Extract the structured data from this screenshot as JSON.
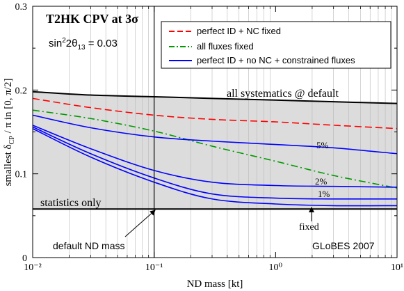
{
  "chart_data": {
    "type": "line",
    "title": "T2HK  CPV at 3σ",
    "subtitle": "sin²2θ₁₃ = 0.03",
    "xlabel": "ND mass [kt]",
    "ylabel": "smallest δCP / π  in [0, π/2]",
    "xscale": "log",
    "xlim": [
      0.01,
      10
    ],
    "ylim": [
      0,
      0.3
    ],
    "x_ticks": [
      {
        "value": 0.01,
        "label": "10⁻²"
      },
      {
        "value": 0.1,
        "label": "10⁻¹"
      },
      {
        "value": 1,
        "label": "10⁰"
      },
      {
        "value": 10,
        "label": "10¹"
      }
    ],
    "y_ticks": [
      {
        "value": 0,
        "label": "0"
      },
      {
        "value": 0.1,
        "label": "0.1"
      },
      {
        "value": 0.2,
        "label": "0.2"
      },
      {
        "value": 0.3,
        "label": "0.3"
      }
    ],
    "grid": "vertical minor lines",
    "legend_position": "top-right",
    "series": [
      {
        "name": "all systematics @ default",
        "color": "#000000",
        "style": "solid-thick",
        "x": [
          0.01,
          0.03,
          0.1,
          0.3,
          1,
          3,
          10
        ],
        "y": [
          0.198,
          0.194,
          0.192,
          0.19,
          0.188,
          0.186,
          0.184
        ]
      },
      {
        "name": "perfect ID + NC fixed",
        "color": "#ff0000",
        "style": "dashed",
        "x": [
          0.01,
          0.03,
          0.1,
          0.3,
          1,
          3,
          10
        ],
        "y": [
          0.19,
          0.179,
          0.17,
          0.165,
          0.162,
          0.158,
          0.154
        ]
      },
      {
        "name": "all fluxes fixed",
        "color": "#009900",
        "style": "dashdot",
        "x": [
          0.01,
          0.03,
          0.1,
          0.3,
          1,
          3,
          10
        ],
        "y": [
          0.176,
          0.166,
          0.151,
          0.133,
          0.115,
          0.098,
          0.083
        ]
      },
      {
        "name": "perfect ID + no NC + constrained fluxes",
        "color": "#0000ff",
        "style": "solid",
        "label": "5%",
        "x": [
          0.01,
          0.03,
          0.1,
          0.3,
          1,
          3,
          10
        ],
        "y": [
          0.17,
          0.155,
          0.144,
          0.139,
          0.135,
          0.131,
          0.124
        ]
      },
      {
        "name": "",
        "color": "#0000ff",
        "style": "solid",
        "label": "2%",
        "x": [
          0.01,
          0.03,
          0.1,
          0.3,
          1,
          3,
          10
        ],
        "y": [
          0.158,
          0.13,
          0.104,
          0.09,
          0.086,
          0.085,
          0.084
        ]
      },
      {
        "name": "",
        "color": "#0000ff",
        "style": "solid",
        "label": "1%",
        "x": [
          0.01,
          0.03,
          0.1,
          0.3,
          1,
          3,
          10
        ],
        "y": [
          0.156,
          0.124,
          0.095,
          0.076,
          0.071,
          0.07,
          0.07
        ]
      },
      {
        "name": "",
        "color": "#0000ff",
        "style": "solid",
        "label": "fixed",
        "x": [
          0.01,
          0.03,
          0.1,
          0.3,
          1,
          3,
          10
        ],
        "y": [
          0.154,
          0.12,
          0.09,
          0.07,
          0.064,
          0.062,
          0.062
        ]
      },
      {
        "name": "statistics only",
        "color": "#000000",
        "style": "solid-thick",
        "x": [
          0.01,
          10
        ],
        "y": [
          0.058,
          0.058
        ]
      }
    ],
    "shaded_band": {
      "between": [
        "statistics only",
        "all systematics @ default"
      ],
      "color": "#dcdcdc"
    },
    "vertical_marker": {
      "x": 0.1,
      "label": "default ND mass"
    },
    "annotations": {
      "all_systematics": "all systematics @ default",
      "statistics_only": "statistics only",
      "label_5": "5%",
      "label_2": "2%",
      "label_1": "1%",
      "label_fixed": "fixed",
      "default_nd": "default ND mass",
      "credit": "GLoBES 2007"
    }
  }
}
